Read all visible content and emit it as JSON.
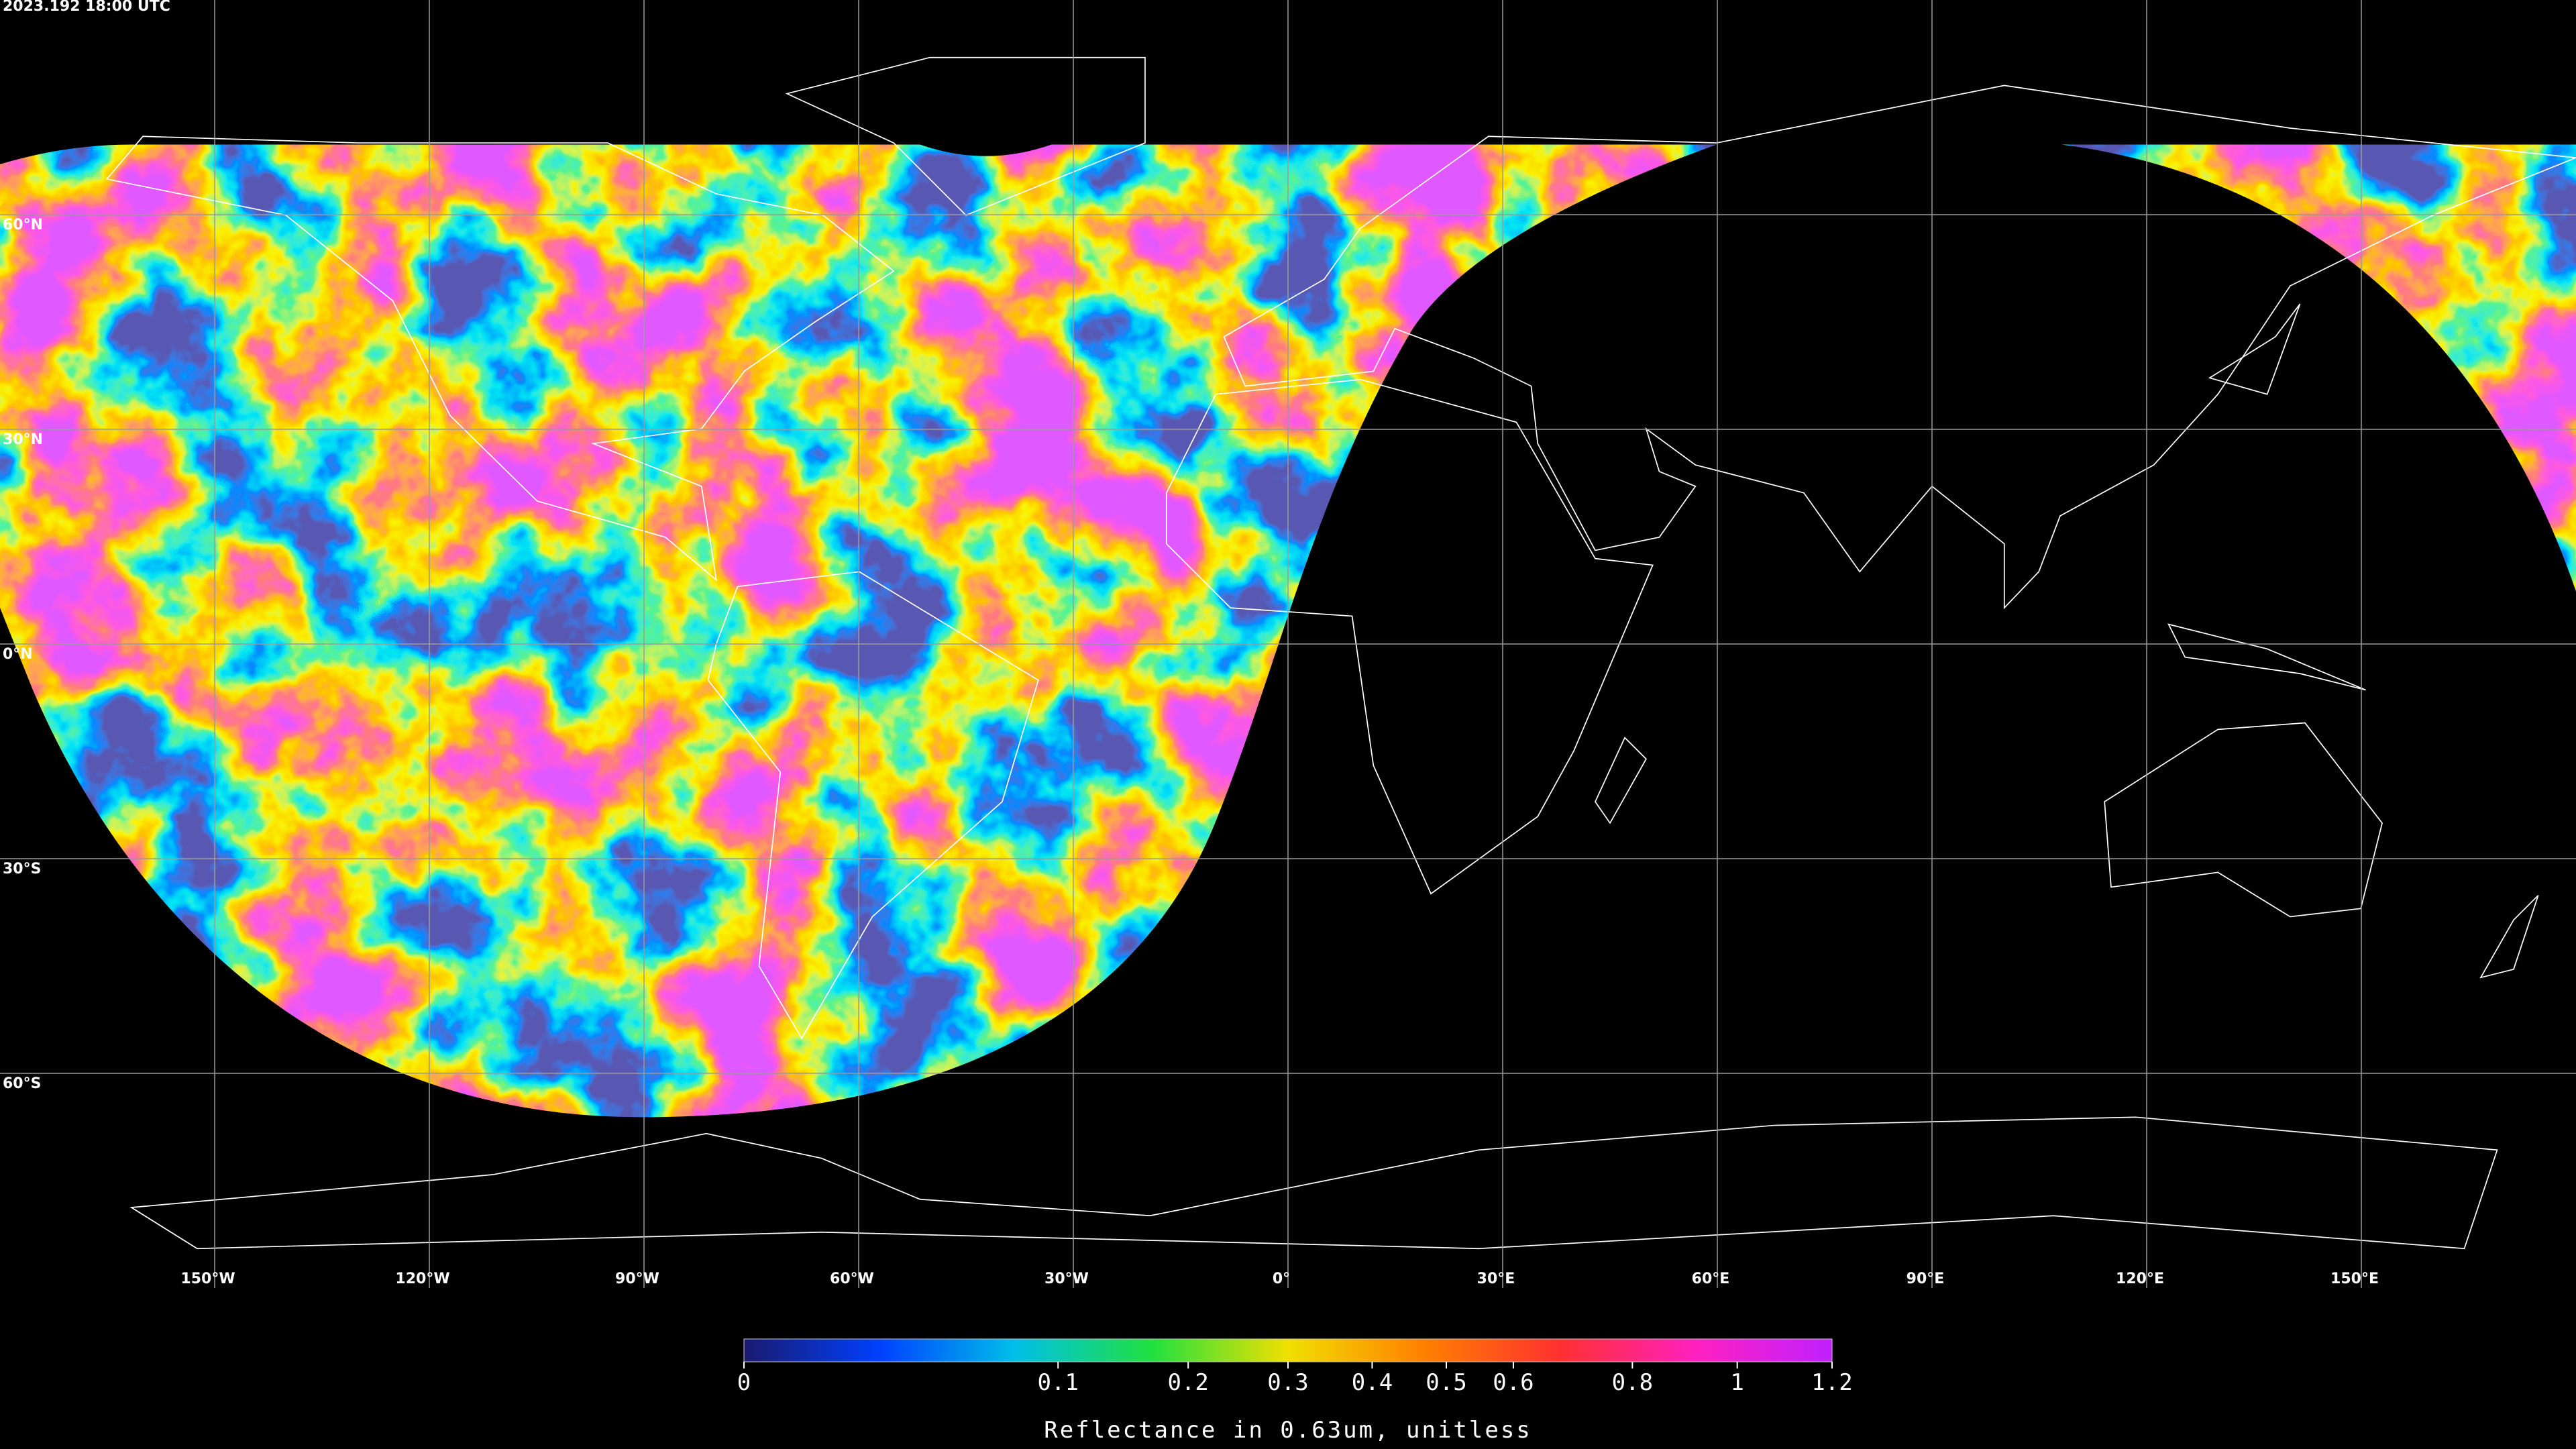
{
  "timestamp": "2023.192 18:00 UTC",
  "map": {
    "xlim": [
      -180,
      180
    ],
    "ylim": [
      -90,
      90
    ],
    "lon_ticks": [
      {
        "value": -150,
        "label": "150°W"
      },
      {
        "value": -120,
        "label": "120°W"
      },
      {
        "value": -90,
        "label": "90°W"
      },
      {
        "value": -60,
        "label": "60°W"
      },
      {
        "value": -30,
        "label": "30°W"
      },
      {
        "value": 0,
        "label": "0°"
      },
      {
        "value": 30,
        "label": "30°E"
      },
      {
        "value": 60,
        "label": "60°E"
      },
      {
        "value": 90,
        "label": "90°E"
      },
      {
        "value": 120,
        "label": "120°E"
      },
      {
        "value": 150,
        "label": "150°E"
      }
    ],
    "lat_ticks": [
      {
        "value": 60,
        "label": "60°N"
      },
      {
        "value": 30,
        "label": "30°N"
      },
      {
        "value": 0,
        "label": "0°N"
      },
      {
        "value": -30,
        "label": "30°S"
      },
      {
        "value": -60,
        "label": "60°S"
      }
    ],
    "grid": true,
    "grid_color": "#9a9a9a"
  },
  "colorbar": {
    "label": "Reflectance in 0.63um, unitless",
    "range": [
      0,
      1.2
    ],
    "scale": "sqrt",
    "ticks": [
      0,
      0.1,
      0.2,
      0.3,
      0.4,
      0.5,
      0.6,
      0.8,
      1,
      1.2
    ],
    "colors": [
      "#1a1a6e",
      "#0040ff",
      "#00c0e8",
      "#20e040",
      "#f0e000",
      "#ff8000",
      "#ff3030",
      "#ff20c0",
      "#c020ff"
    ]
  }
}
